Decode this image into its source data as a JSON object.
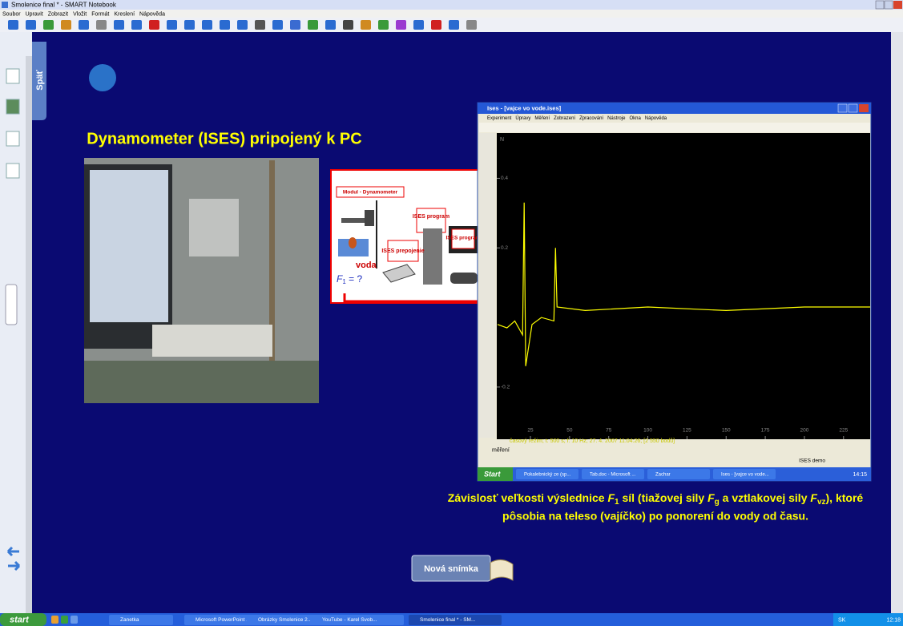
{
  "window": {
    "title": "Smolenice final * - SMART Notebook",
    "menu": [
      "Soubor",
      "Upravit",
      "Zobrazit",
      "Vložit",
      "Formát",
      "Kreslení",
      "Nápověda"
    ]
  },
  "side_tab": "Späť",
  "slide": {
    "title": "Dynamometer (ISES) pripojený k PC",
    "diagram": {
      "module": "Modul - Dynamometer",
      "water": "voda",
      "force_symbol": "F",
      "force_sub": "1",
      "force_rest": " = ?",
      "ises_program_1": "ISES program",
      "ises_link": "ISES prepojenie",
      "ises_program_2": "ISES program"
    },
    "caption": {
      "line1": [
        "Závislosť veľkosti výslednice ",
        "F",
        "1",
        " síl (tiažovej sily ",
        "F",
        "g",
        " a vztlakovej sily ",
        "F",
        "vz",
        "), ktoré"
      ],
      "line2": "pôsobia na teleso (vajíčko) po ponorení do vody od času."
    },
    "button": "Nová snímka"
  },
  "ises_window": {
    "title": "Ises - [vajce vo vode.ises]",
    "menu": [
      "Experiment",
      "Úpravy",
      "Měření",
      "Zobrazení",
      "Zpracování",
      "Nástroje",
      "Okna",
      "Nápověda"
    ],
    "status": "časový režim; t: 500 s; f: 10 Hz; 27. 4. 2007 11:04:26; [2 550 bodů]",
    "tab": "měření",
    "demo": "ISES demo",
    "taskbar": {
      "start": "Start",
      "items": [
        "Pokalebnický ze (sp...",
        "Tab.doc - Microsoft ...",
        "Zachar",
        "Ises - [vajce vo vode..."
      ],
      "clock": "14:15"
    }
  },
  "chart_data": {
    "type": "line",
    "y_label": "N",
    "x": [
      4,
      10,
      15,
      20,
      21,
      22,
      26,
      32,
      40,
      41,
      42,
      60,
      100,
      150,
      200,
      242
    ],
    "values": [
      -0.02,
      -0.03,
      -0.01,
      -0.05,
      0.33,
      -0.14,
      -0.02,
      0.0,
      -0.01,
      0.2,
      0.03,
      0.02,
      0.03,
      0.02,
      0.03,
      0.03
    ],
    "color": "#ffff00",
    "xlim": [
      3.5,
      242
    ],
    "ylim": [
      -0.35,
      0.53
    ],
    "xticks": [
      25,
      50,
      75,
      100,
      125,
      150,
      175,
      200,
      225
    ],
    "yticks": [
      -0.2,
      0.2,
      0.4
    ]
  },
  "taskbar": {
    "start": "start",
    "items": [
      "Zanetka",
      "Microsoft PowerPoint ...",
      "Obrázky Smolenice 2...",
      "YouTube - Karel Svob...",
      "Smolenice final * - SM..."
    ],
    "lang": "SK",
    "clock": "12:18"
  }
}
